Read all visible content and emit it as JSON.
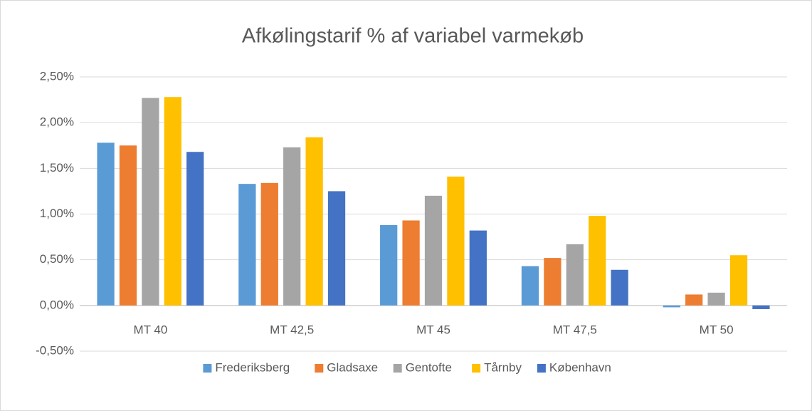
{
  "chart_data": {
    "type": "bar",
    "title": "Afkølingstarif % af variabel varmekøb",
    "categories": [
      "MT 40",
      "MT 42,5",
      "MT 45",
      "MT 47,5",
      "MT 50"
    ],
    "series": [
      {
        "name": "Frederiksberg",
        "color": "#5b9bd5",
        "values": [
          1.78,
          1.33,
          0.88,
          0.43,
          -0.02
        ]
      },
      {
        "name": "Gladsaxe",
        "color": "#ed7d31",
        "values": [
          1.75,
          1.34,
          0.93,
          0.52,
          0.12
        ]
      },
      {
        "name": "Gentofte",
        "color": "#a5a5a5",
        "values": [
          2.27,
          1.73,
          1.2,
          0.67,
          0.14
        ]
      },
      {
        "name": "Tårnby",
        "color": "#ffc000",
        "values": [
          2.28,
          1.84,
          1.41,
          0.98,
          0.55
        ]
      },
      {
        "name": "København",
        "color": "#4472c4",
        "values": [
          1.68,
          1.25,
          0.82,
          0.39,
          -0.04
        ]
      }
    ],
    "ylim": [
      -0.5,
      2.5
    ],
    "yticks": [
      {
        "value": -0.5,
        "label": "-0,50%"
      },
      {
        "value": 0,
        "label": "0,00%"
      },
      {
        "value": 0.5,
        "label": "0,50%"
      },
      {
        "value": 1,
        "label": "1,00%"
      },
      {
        "value": 1.5,
        "label": "1,50%"
      },
      {
        "value": 2,
        "label": "2,00%"
      },
      {
        "value": 2.5,
        "label": "2,50%"
      }
    ],
    "grid": true,
    "legend": "bottom"
  }
}
